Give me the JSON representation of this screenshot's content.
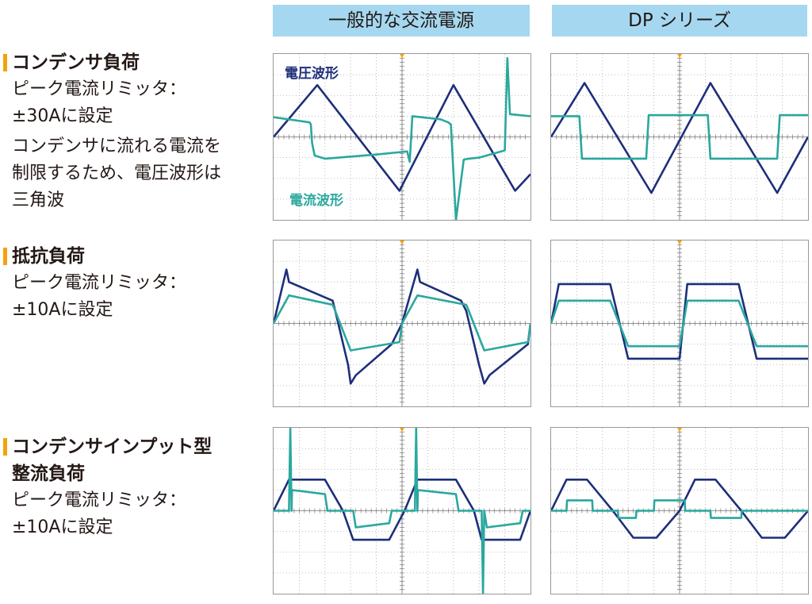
{
  "columns": [
    "一般的な交流電源",
    "DP シリーズ"
  ],
  "rows": [
    {
      "title_lines": [
        "コンデンサ負荷"
      ],
      "paragraphs": [
        [
          "ピーク電流リミッタ：",
          "±30Aに設定"
        ],
        [
          "コンデンサに流れる電流を",
          "制限するため、電圧波形は",
          "三角波"
        ]
      ]
    },
    {
      "title_lines": [
        "抵抗負荷"
      ],
      "paragraphs": [
        [
          "ピーク電流リミッタ：",
          "±10Aに設定"
        ]
      ]
    },
    {
      "title_lines": [
        "コンデンサインプット型",
        "整流負荷"
      ],
      "paragraphs": [
        [
          "ピーク電流リミッタ：",
          "±10Aに設定"
        ]
      ]
    }
  ],
  "wave_labels": {
    "voltage": "電圧波形",
    "current": "電流波形"
  },
  "colors": {
    "voltage": "#1d2f7a",
    "current": "#2aa89e",
    "grid": "#aaaaaa",
    "header_bg": "#a5d8f0",
    "marker": "#f5a10c",
    "trigger": "#f5a10c"
  },
  "chart_data": [
    {
      "type": "line",
      "panel": "一般的な交流電源 / コンデンサ負荷",
      "xlim": [
        0,
        10
      ],
      "ylim": [
        -4,
        4
      ],
      "series": [
        {
          "name": "電圧波形",
          "x": [
            0,
            1.7,
            4.9,
            7.0,
            9.4,
            10
          ],
          "y": [
            0,
            2.5,
            -2.6,
            2.5,
            -2.6,
            -1.8
          ]
        },
        {
          "name": "電流波形",
          "x": [
            0,
            1.4,
            1.45,
            1.5,
            1.6,
            2.0,
            3.0,
            4.0,
            5.2,
            5.3,
            5.4,
            6.5,
            6.8,
            6.9,
            7.1,
            7.4,
            7.6,
            8.0,
            9.0,
            9.1,
            9.2,
            10
          ],
          "y": [
            0.95,
            0.7,
            0.6,
            -0.3,
            -0.9,
            -1.05,
            -0.95,
            -0.85,
            -0.7,
            -1.2,
            1.0,
            0.85,
            0.7,
            0.6,
            -4.0,
            -1.1,
            -1.05,
            -1.0,
            -0.65,
            3.8,
            1.1,
            1.0
          ]
        }
      ]
    },
    {
      "type": "line",
      "panel": "DP シリーズ / コンデンサ負荷",
      "xlim": [
        0,
        10
      ],
      "ylim": [
        -4,
        4
      ],
      "series": [
        {
          "name": "電圧波形",
          "x": [
            0,
            1.3,
            3.9,
            6.2,
            8.8,
            10
          ],
          "y": [
            0,
            2.6,
            -2.7,
            2.6,
            -2.7,
            0
          ]
        },
        {
          "name": "電流波形",
          "x": [
            0,
            1.1,
            1.2,
            3.7,
            3.8,
            6.1,
            6.2,
            8.8,
            8.9,
            10
          ],
          "y": [
            1.0,
            1.0,
            -1.05,
            -1.05,
            1.05,
            1.05,
            -1.05,
            -1.05,
            1.05,
            1.05
          ]
        }
      ]
    },
    {
      "type": "line",
      "panel": "一般的な交流電源 / 抵抗負荷",
      "xlim": [
        0,
        10
      ],
      "ylim": [
        -4,
        4
      ],
      "series": [
        {
          "name": "電圧波形",
          "x": [
            0,
            0.5,
            0.6,
            2.3,
            2.4,
            2.9,
            3.0,
            3.2,
            4.6,
            5.0,
            5.6,
            5.7,
            7.3,
            7.5,
            8.0,
            8.2,
            8.4,
            9.9,
            10
          ],
          "y": [
            0,
            2.6,
            2.0,
            1.1,
            0.6,
            -2.0,
            -2.9,
            -2.5,
            -1.0,
            0,
            2.6,
            2.0,
            1.1,
            0.6,
            -2.0,
            -2.9,
            -2.5,
            -1.0,
            0
          ]
        },
        {
          "name": "電流波形",
          "x": [
            0,
            0.6,
            2.3,
            2.4,
            3.0,
            4.9,
            5.0,
            5.6,
            7.5,
            7.6,
            8.2,
            9.9,
            10
          ],
          "y": [
            0,
            1.35,
            0.9,
            0.6,
            -1.3,
            -0.9,
            0,
            1.35,
            0.9,
            0.6,
            -1.3,
            -0.9,
            0
          ]
        }
      ]
    },
    {
      "type": "line",
      "panel": "DP シリーズ / 抵抗負荷",
      "xlim": [
        0,
        10
      ],
      "ylim": [
        -4,
        4
      ],
      "series": [
        {
          "name": "電圧波形",
          "x": [
            0,
            0.3,
            2.3,
            3.0,
            5.0,
            5.3,
            7.3,
            8.0,
            10
          ],
          "y": [
            0,
            1.9,
            1.9,
            -1.7,
            -1.7,
            1.9,
            1.9,
            -1.7,
            -1.7
          ]
        },
        {
          "name": "電流波形",
          "x": [
            0,
            0.3,
            2.3,
            3.0,
            5.0,
            5.3,
            7.3,
            8.0,
            10
          ],
          "y": [
            0,
            1.1,
            1.1,
            -1.1,
            -1.1,
            1.1,
            1.1,
            -1.1,
            -1.1
          ]
        }
      ]
    },
    {
      "type": "line",
      "panel": "一般的な交流電源 / コンデンサインプット型整流負荷",
      "xlim": [
        0,
        10
      ],
      "ylim": [
        -4,
        4
      ],
      "series": [
        {
          "name": "電圧波形",
          "x": [
            0,
            0.6,
            2.0,
            2.7,
            3.1,
            4.5,
            5.1,
            5.6,
            7.1,
            7.8,
            8.1,
            9.6,
            10
          ],
          "y": [
            0,
            1.5,
            1.5,
            0,
            -1.4,
            -1.4,
            0,
            1.5,
            1.5,
            0,
            -1.4,
            -1.4,
            0
          ]
        },
        {
          "name": "電流波形",
          "x": [
            0,
            0.6,
            0.65,
            0.7,
            0.72,
            2.0,
            2.1,
            3.1,
            3.2,
            4.5,
            4.6,
            5.0,
            5.5,
            5.55,
            5.6,
            5.62,
            7.1,
            7.2,
            8.1,
            8.15,
            8.2,
            8.3,
            9.6,
            9.7,
            10
          ],
          "y": [
            0,
            0,
            4.0,
            0,
            1.0,
            0.8,
            0,
            0,
            -0.8,
            -0.6,
            0,
            0,
            0,
            4.0,
            0,
            1.0,
            0.8,
            0,
            0,
            -4.0,
            0,
            -0.8,
            -0.6,
            0,
            0
          ]
        }
      ]
    },
    {
      "type": "line",
      "panel": "DP シリーズ / コンデンサインプット型整流負荷",
      "xlim": [
        0,
        10
      ],
      "ylim": [
        -4,
        4
      ],
      "series": [
        {
          "name": "電圧波形",
          "x": [
            0,
            0.6,
            1.4,
            2.4,
            3.2,
            4.1,
            5.0,
            5.6,
            6.4,
            7.4,
            8.2,
            9.1,
            10
          ],
          "y": [
            0,
            1.5,
            1.5,
            0,
            -1.3,
            -1.3,
            0,
            1.5,
            1.5,
            0,
            -1.3,
            -1.3,
            0
          ]
        },
        {
          "name": "電流波形",
          "x": [
            0,
            0.6,
            0.62,
            1.6,
            1.62,
            2.6,
            2.62,
            3.3,
            3.32,
            4.0,
            4.02,
            5.2,
            5.22,
            6.2,
            6.22,
            7.4,
            7.42,
            8.3,
            8.32,
            9.0,
            9.02,
            10
          ],
          "y": [
            0,
            0,
            0.5,
            0.5,
            0,
            0,
            -0.35,
            -0.35,
            0,
            0,
            0.5,
            0.5,
            0,
            0,
            -0.35,
            -0.35,
            0,
            0,
            0,
            0,
            0,
            0
          ]
        }
      ]
    }
  ]
}
